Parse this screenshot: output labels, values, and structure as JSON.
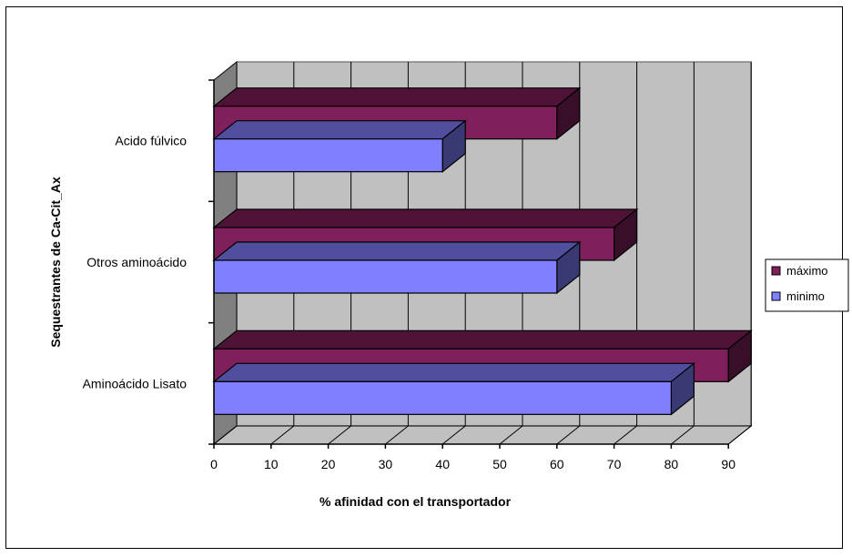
{
  "chart_data": {
    "type": "bar",
    "orientation": "horizontal",
    "style": "3d-clustered",
    "categories": [
      "Aminoácido Lisato",
      "Otros aminoácido",
      "Acido fúlvico"
    ],
    "series": [
      {
        "name": "máximo",
        "values": [
          90,
          70,
          60
        ],
        "color": "#7f1f5b"
      },
      {
        "name": "minimo",
        "values": [
          80,
          60,
          40
        ],
        "color": "#7f7fff"
      }
    ],
    "xlabel": "% afinidad con el transportador",
    "ylabel": "Sequestrantes de Ca-Cit_Ax",
    "xlim": [
      0,
      90
    ],
    "xticks": [
      "0",
      "10",
      "20",
      "30",
      "40",
      "50",
      "60",
      "70",
      "80",
      "90"
    ],
    "grid": true,
    "legend_position": "right",
    "colors": {
      "wall": "#c0c0c0",
      "floor": "#c0c0c0",
      "side_wall": "#808080"
    }
  }
}
